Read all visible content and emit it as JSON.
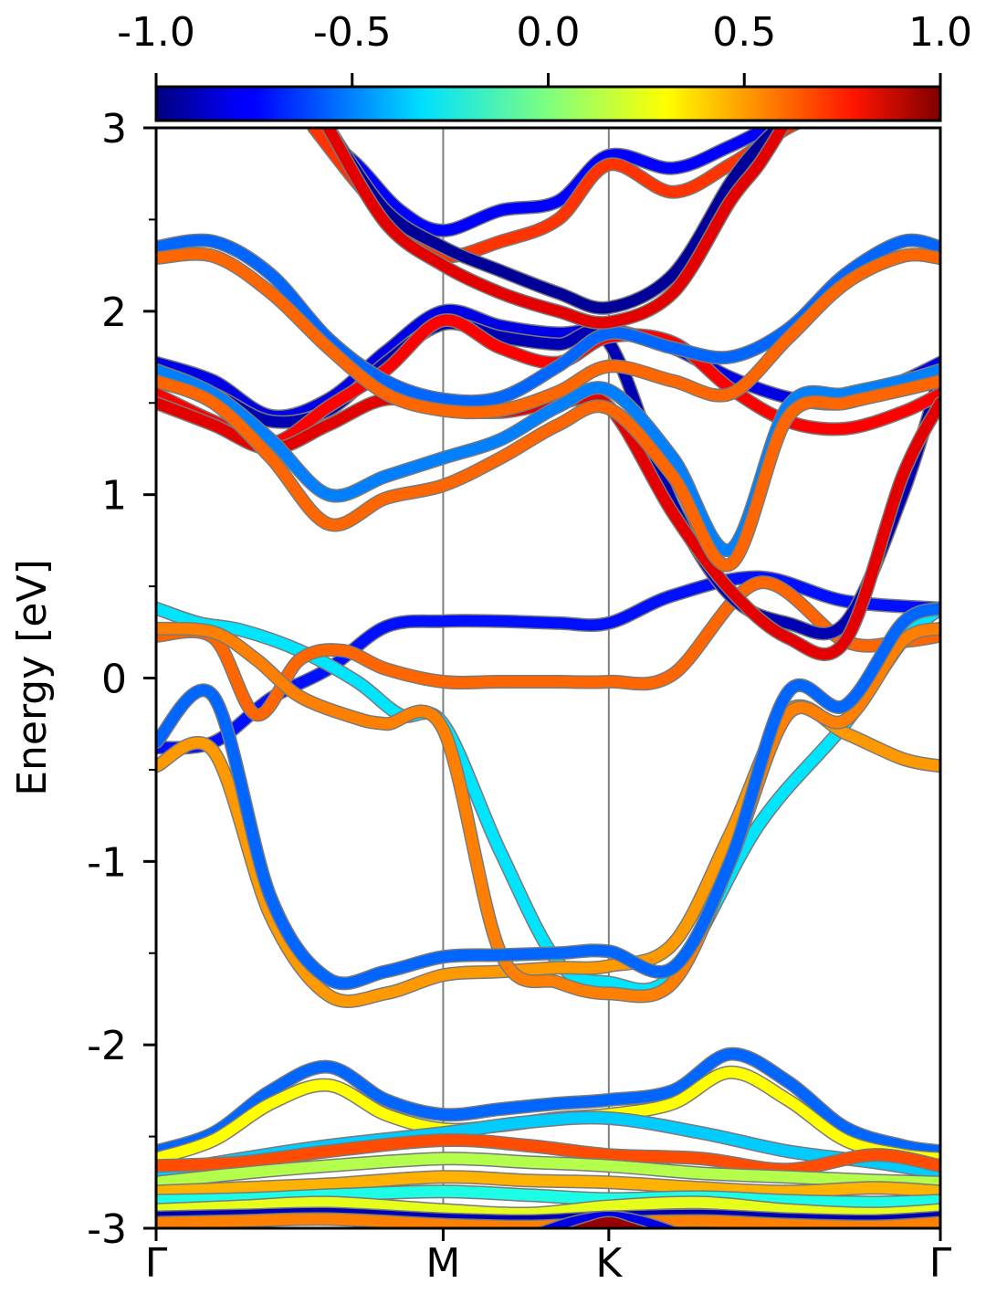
{
  "chart_data": {
    "type": "line",
    "title": "",
    "xlabel": "",
    "ylabel": "Energy [eV]",
    "ylim": [
      -3,
      3
    ],
    "ytick_labels": [
      "-3",
      "-2",
      "-1",
      "0",
      "1",
      "2",
      "3"
    ],
    "yticks": [
      -3,
      -2,
      -1,
      0,
      1,
      2,
      3
    ],
    "minor_yticks": [
      -2.5,
      -1.5,
      -0.5,
      0.5,
      1.5,
      2.5
    ],
    "x_kpoints": [
      {
        "label": "Γ",
        "x": 0.0
      },
      {
        "label": "M",
        "x": 1.0
      },
      {
        "label": "K",
        "x": 1.577
      },
      {
        "label": "Γ",
        "x": 2.732
      }
    ],
    "colorbar": {
      "min": -1.0,
      "max": 1.0,
      "colormap": "jet",
      "tick_labels": [
        "-1.0",
        "-0.5",
        "0.0",
        "0.5",
        "1.0"
      ],
      "ticks": [
        -1.0,
        -0.5,
        0.0,
        0.5,
        1.0
      ]
    },
    "grid": false,
    "series": [
      {
        "spin": -0.72,
        "x": [
          0,
          0.2,
          0.4,
          0.6,
          0.8,
          1.0,
          1.2,
          1.4,
          1.577,
          1.8,
          2.1,
          2.4,
          2.732
        ],
        "y": [
          -0.38,
          -0.35,
          -0.11,
          0.05,
          0.28,
          0.31,
          0.31,
          0.3,
          0.3,
          0.45,
          0.55,
          0.42,
          0.38
        ]
      },
      {
        "spin": -0.3,
        "x": [
          0,
          0.15,
          0.3,
          0.5,
          0.7,
          0.85,
          1.0,
          1.2,
          1.4,
          1.577,
          1.8,
          2.1,
          2.4,
          2.6,
          2.732
        ],
        "y": [
          0.38,
          0.3,
          0.26,
          0.15,
          -0.02,
          -0.2,
          -0.25,
          -0.95,
          -1.55,
          -1.66,
          -1.62,
          -0.8,
          -0.25,
          0.2,
          0.38
        ]
      },
      {
        "spin": 0.55,
        "x": [
          0,
          0.2,
          0.35,
          0.5,
          0.65,
          0.8,
          1.0,
          1.2,
          1.4,
          1.577,
          1.8,
          2.1,
          2.4,
          2.6,
          2.732
        ],
        "y": [
          0.23,
          0.22,
          -0.2,
          0.1,
          0.15,
          0.05,
          -0.02,
          -0.02,
          -0.02,
          -0.02,
          0.02,
          0.52,
          0.2,
          0.2,
          0.23
        ]
      },
      {
        "spin": 0.45,
        "x": [
          0,
          0.2,
          0.4,
          0.6,
          0.8,
          1.0,
          1.2,
          1.4,
          1.577,
          1.8,
          2.0,
          2.2,
          2.4,
          2.6,
          2.732
        ],
        "y": [
          -0.48,
          -0.4,
          -1.3,
          -1.73,
          -1.72,
          -1.62,
          -1.6,
          -1.58,
          -1.57,
          -1.45,
          -0.85,
          -0.18,
          -0.3,
          -0.44,
          -0.48
        ]
      },
      {
        "spin": 0.5,
        "x": [
          0,
          0.2,
          0.35,
          0.5,
          0.7,
          0.8,
          1.0,
          1.2,
          1.4,
          1.577,
          1.8,
          2.0,
          2.2,
          2.4,
          2.6,
          2.732
        ],
        "y": [
          0.27,
          0.25,
          0.1,
          -0.1,
          -0.22,
          -0.25,
          -0.28,
          -1.5,
          -1.66,
          -1.72,
          -1.66,
          -1.0,
          -0.2,
          -0.23,
          0.2,
          0.27
        ]
      },
      {
        "spin": -0.55,
        "x": [
          0,
          0.2,
          0.4,
          0.6,
          0.8,
          1.0,
          1.2,
          1.4,
          1.577,
          1.8,
          2.0,
          2.2,
          2.4,
          2.6,
          2.732
        ],
        "y": [
          -0.35,
          -0.1,
          -1.2,
          -1.64,
          -1.6,
          -1.52,
          -1.51,
          -1.5,
          -1.49,
          -1.58,
          -1.0,
          -0.08,
          -0.15,
          0.3,
          0.38
        ]
      },
      {
        "spin": -0.8,
        "x": [
          0,
          0.2,
          0.4,
          0.6,
          0.8,
          1.0,
          1.2,
          1.4,
          1.577,
          1.8,
          2.0,
          2.2,
          2.4,
          2.6,
          2.732
        ],
        "y": [
          1.72,
          1.62,
          1.43,
          1.52,
          1.78,
          2.0,
          1.92,
          1.88,
          1.9,
          1.8,
          1.64,
          1.53,
          1.5,
          1.62,
          1.72
        ]
      },
      {
        "spin": -0.9,
        "x": [
          0,
          0.2,
          0.4,
          0.6,
          0.8,
          1.0,
          1.2,
          1.4,
          1.577,
          1.8,
          2.0,
          2.2,
          2.4,
          2.6,
          2.732
        ],
        "y": [
          1.65,
          1.55,
          1.4,
          1.46,
          1.72,
          1.93,
          1.86,
          1.82,
          1.83,
          0.95,
          0.45,
          0.3,
          0.3,
          1.0,
          1.65
        ]
      },
      {
        "spin": 0.75,
        "x": [
          0,
          0.2,
          0.4,
          0.6,
          0.8,
          1.0,
          1.2,
          1.4,
          1.577,
          1.8,
          2.0,
          2.2,
          2.4,
          2.6,
          2.732
        ],
        "y": [
          1.55,
          1.4,
          1.28,
          1.48,
          1.68,
          1.95,
          1.8,
          1.72,
          1.86,
          1.83,
          1.58,
          1.4,
          1.36,
          1.45,
          1.55
        ]
      },
      {
        "spin": 0.8,
        "x": [
          0,
          0.2,
          0.4,
          0.6,
          0.8,
          1.0,
          1.2,
          1.4,
          1.577,
          1.8,
          2.0,
          2.2,
          2.4,
          2.6,
          2.732
        ],
        "y": [
          1.5,
          1.38,
          1.25,
          1.38,
          1.52,
          1.47,
          1.45,
          1.5,
          1.48,
          0.9,
          0.48,
          0.22,
          0.2,
          1.1,
          1.5
        ]
      },
      {
        "spin": -0.5,
        "x": [
          0,
          0.2,
          0.4,
          0.6,
          0.8,
          1.0,
          1.2,
          1.4,
          1.577,
          1.8,
          2.0,
          2.2,
          2.4,
          2.6,
          2.732
        ],
        "y": [
          1.68,
          1.55,
          1.3,
          1.0,
          1.1,
          1.2,
          1.3,
          1.48,
          1.57,
          1.2,
          0.7,
          1.48,
          1.55,
          1.62,
          1.68
        ]
      },
      {
        "spin": 0.55,
        "x": [
          0,
          0.2,
          0.4,
          0.6,
          0.8,
          1.0,
          1.2,
          1.4,
          1.577,
          1.8,
          2.0,
          2.2,
          2.4,
          2.6,
          2.732
        ],
        "y": [
          1.62,
          1.5,
          1.2,
          0.84,
          0.98,
          1.05,
          1.2,
          1.38,
          1.47,
          1.1,
          0.62,
          1.42,
          1.5,
          1.57,
          1.62
        ]
      },
      {
        "spin": -0.55,
        "x": [
          0,
          0.2,
          0.4,
          0.6,
          0.8,
          1.0,
          1.2,
          1.4,
          1.577,
          1.8,
          2.0,
          2.2,
          2.4,
          2.6,
          2.732
        ],
        "y": [
          2.35,
          2.38,
          2.2,
          1.85,
          1.62,
          1.52,
          1.53,
          1.7,
          1.88,
          1.8,
          1.75,
          1.9,
          2.2,
          2.38,
          2.35
        ]
      },
      {
        "spin": 0.55,
        "x": [
          0,
          0.2,
          0.4,
          0.6,
          0.8,
          1.0,
          1.2,
          1.4,
          1.577,
          1.8,
          2.0,
          2.2,
          2.4,
          2.6,
          2.732
        ],
        "y": [
          2.29,
          2.3,
          2.1,
          1.8,
          1.55,
          1.46,
          1.46,
          1.56,
          1.7,
          1.62,
          1.55,
          1.85,
          2.15,
          2.3,
          2.29
        ]
      },
      {
        "spin": -0.75,
        "x": [
          0.55,
          0.7,
          0.85,
          1.0,
          1.2,
          1.4,
          1.577,
          1.8,
          2.0,
          2.2,
          2.35
        ],
        "y": [
          3.0,
          2.8,
          2.55,
          2.44,
          2.55,
          2.6,
          2.85,
          2.78,
          2.9,
          3.05,
          3.1
        ]
      },
      {
        "spin": 0.65,
        "x": [
          0.55,
          0.7,
          0.85,
          1.0,
          1.2,
          1.4,
          1.577,
          1.8,
          2.0,
          2.2,
          2.35
        ],
        "y": [
          3.0,
          2.7,
          2.45,
          2.3,
          2.38,
          2.5,
          2.8,
          2.65,
          2.8,
          3.0,
          3.1
        ]
      },
      {
        "spin": -0.95,
        "x": [
          0.6,
          0.8,
          1.0,
          1.2,
          1.4,
          1.577,
          1.8,
          2.0,
          2.1,
          2.2
        ],
        "y": [
          3.0,
          2.55,
          2.35,
          2.22,
          2.1,
          2.02,
          2.2,
          2.7,
          2.9,
          3.05
        ]
      },
      {
        "spin": 0.8,
        "x": [
          0.6,
          0.8,
          1.0,
          1.2,
          1.4,
          1.577,
          1.8,
          2.0,
          2.1,
          2.2
        ],
        "y": [
          3.0,
          2.48,
          2.25,
          2.1,
          2.0,
          1.94,
          2.1,
          2.6,
          2.8,
          3.05
        ]
      },
      {
        "spin": -0.55,
        "x": [
          0,
          0.2,
          0.4,
          0.6,
          0.8,
          1.0,
          1.2,
          1.4,
          1.577,
          1.8,
          2.0,
          2.2,
          2.4,
          2.6,
          2.732
        ],
        "y": [
          -2.58,
          -2.48,
          -2.25,
          -2.12,
          -2.3,
          -2.38,
          -2.35,
          -2.32,
          -2.3,
          -2.25,
          -2.05,
          -2.2,
          -2.45,
          -2.55,
          -2.58
        ]
      },
      {
        "spin": 0.25,
        "x": [
          0,
          0.2,
          0.4,
          0.6,
          0.8,
          1.0,
          1.2,
          1.4,
          1.577,
          1.8,
          2.0,
          2.2,
          2.4,
          2.6,
          2.732
        ],
        "y": [
          -2.62,
          -2.52,
          -2.32,
          -2.22,
          -2.38,
          -2.46,
          -2.44,
          -2.4,
          -2.38,
          -2.32,
          -2.15,
          -2.3,
          -2.52,
          -2.6,
          -2.62
        ]
      },
      {
        "spin": -0.35,
        "x": [
          0,
          0.3,
          0.6,
          1.0,
          1.3,
          1.577,
          1.9,
          2.2,
          2.5,
          2.732
        ],
        "y": [
          -2.7,
          -2.62,
          -2.55,
          -2.48,
          -2.42,
          -2.4,
          -2.48,
          -2.58,
          -2.64,
          -2.7
        ]
      },
      {
        "spin": 0.6,
        "x": [
          0,
          0.3,
          0.6,
          1.0,
          1.3,
          1.577,
          1.9,
          2.2,
          2.5,
          2.732
        ],
        "y": [
          -2.66,
          -2.64,
          -2.58,
          -2.52,
          -2.55,
          -2.6,
          -2.62,
          -2.68,
          -2.6,
          -2.66
        ]
      },
      {
        "spin": 0.1,
        "x": [
          0,
          0.3,
          0.6,
          1.0,
          1.3,
          1.577,
          1.9,
          2.2,
          2.5,
          2.732
        ],
        "y": [
          -2.75,
          -2.7,
          -2.66,
          -2.62,
          -2.64,
          -2.66,
          -2.7,
          -2.72,
          -2.74,
          -2.75
        ]
      },
      {
        "spin": 0.4,
        "x": [
          0,
          0.3,
          0.6,
          1.0,
          1.3,
          1.577,
          1.9,
          2.2,
          2.5,
          2.732
        ],
        "y": [
          -2.8,
          -2.78,
          -2.76,
          -2.72,
          -2.74,
          -2.75,
          -2.78,
          -2.8,
          -2.78,
          -2.8
        ]
      },
      {
        "spin": -0.2,
        "x": [
          0,
          0.3,
          0.6,
          1.0,
          1.3,
          1.577,
          1.9,
          2.2,
          2.5,
          2.732
        ],
        "y": [
          -2.85,
          -2.84,
          -2.82,
          -2.8,
          -2.82,
          -2.84,
          -2.83,
          -2.85,
          -2.86,
          -2.85
        ]
      },
      {
        "spin": 0.2,
        "x": [
          0,
          0.3,
          0.6,
          1.0,
          1.3,
          1.577,
          1.9,
          2.2,
          2.5,
          2.732
        ],
        "y": [
          -2.9,
          -2.88,
          -2.86,
          -2.9,
          -2.92,
          -2.88,
          -2.86,
          -2.9,
          -2.92,
          -2.9
        ]
      },
      {
        "spin": -0.9,
        "x": [
          0,
          0.3,
          0.6,
          1.0,
          1.3,
          1.577,
          1.9,
          2.2,
          2.5,
          2.732
        ],
        "y": [
          -2.94,
          -2.93,
          -2.92,
          -2.95,
          -2.96,
          -2.94,
          -2.93,
          -2.95,
          -2.96,
          -2.94
        ]
      },
      {
        "spin": 0.5,
        "x": [
          0,
          0.3,
          0.6,
          1.0,
          1.3,
          1.577,
          1.9,
          2.2,
          2.5,
          2.732
        ],
        "y": [
          -2.97,
          -2.96,
          -2.95,
          -2.98,
          -2.99,
          -2.97,
          -2.96,
          -2.98,
          -2.99,
          -2.97
        ]
      },
      {
        "spin": -0.8,
        "x": [
          1.3,
          1.45,
          1.577,
          1.7,
          1.85
        ],
        "y": [
          -3.05,
          -2.97,
          -2.94,
          -2.97,
          -3.05
        ]
      },
      {
        "spin": 0.95,
        "x": [
          1.4,
          1.5,
          1.577,
          1.65,
          1.75
        ],
        "y": [
          -3.05,
          -3.0,
          -2.97,
          -3.0,
          -3.05
        ]
      }
    ]
  }
}
